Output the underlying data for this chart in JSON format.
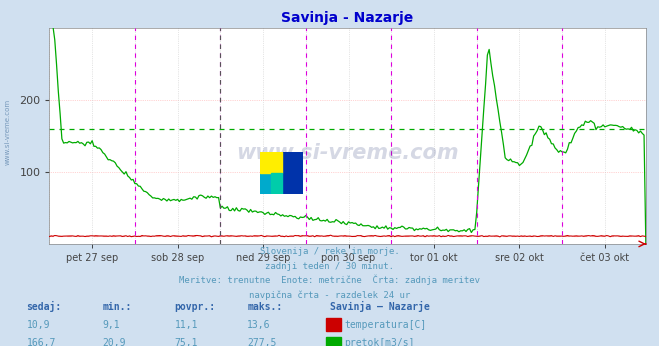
{
  "title": "Savinja - Nazarje",
  "title_color": "#0000cc",
  "bg_color": "#d0e0f0",
  "plot_bg_color": "#ffffff",
  "grid_color_h": "#ffaaaa",
  "grid_color_v": "#cccccc",
  "x_labels": [
    "pet 27 sep",
    "sob 28 sep",
    "ned 29 sep",
    "pon 30 sep",
    "tor 01 okt",
    "sre 02 okt",
    "čet 03 okt"
  ],
  "y_ticks": [
    100,
    200
  ],
  "y_max": 300,
  "y_min": 0,
  "hline_flow": 160.0,
  "hline_temp_display": 11.1,
  "temp_color": "#cc0000",
  "flow_color": "#00aa00",
  "hline_flow_color": "#00aa00",
  "hline_temp_color": "#ffaaaa",
  "vline_magenta_color": "#dd00dd",
  "vline_dark_color": "#555555",
  "footer_color": "#5599bb",
  "stats_color": "#3366aa",
  "footer_lines": [
    "Slovenija / reke in morje.",
    "zadnji teden / 30 minut.",
    "Meritve: trenutne  Enote: metrične  Črta: zadnja meritev",
    "navpična črta - razdelek 24 ur"
  ],
  "stats_headers": [
    "sedaj:",
    "min.:",
    "povpr.:",
    "maks.:",
    "Savinja – Nazarje"
  ],
  "stats_temp": [
    "10,9",
    "9,1",
    "11,1",
    "13,6"
  ],
  "stats_flow": [
    "166,7",
    "20,9",
    "75,1",
    "277,5"
  ],
  "label_temp": "temperatura[C]",
  "label_flow": "pretok[m3/s]",
  "watermark": "www.si-vreme.com",
  "n_points": 336,
  "n_days": 7
}
